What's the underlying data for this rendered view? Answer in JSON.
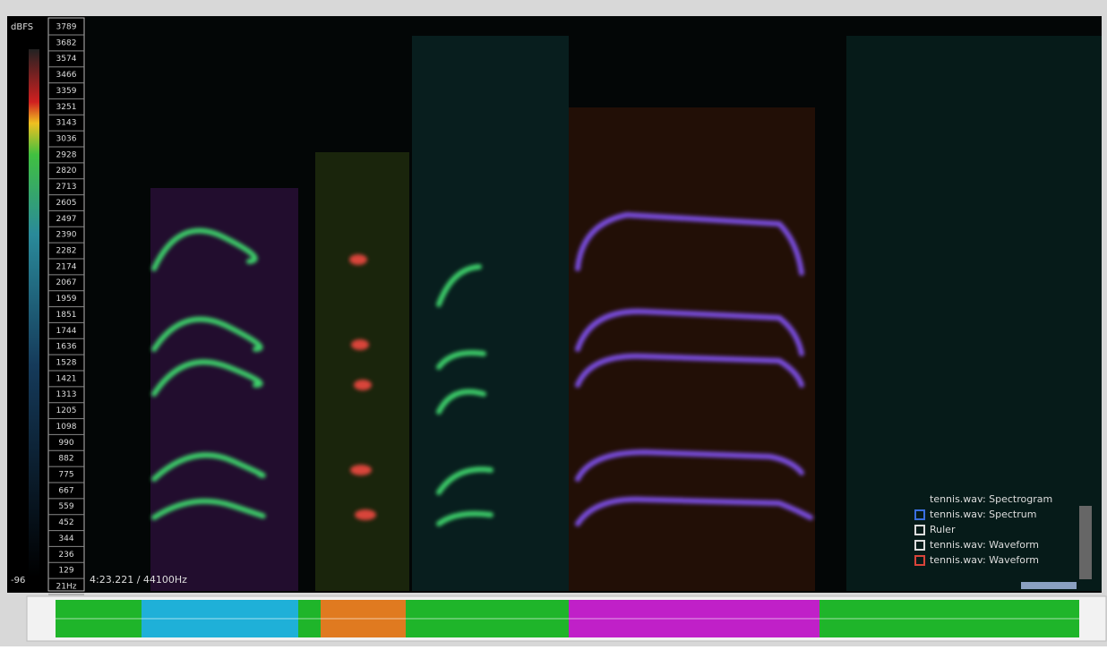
{
  "scale": {
    "unit": "dBFS",
    "min_label": "-96"
  },
  "frequency_labels": [
    "3789",
    "3682",
    "3574",
    "3466",
    "3359",
    "3251",
    "3143",
    "3036",
    "2928",
    "2820",
    "2713",
    "2605",
    "2497",
    "2390",
    "2282",
    "2174",
    "2067",
    "1959",
    "1851",
    "1744",
    "1636",
    "1528",
    "1421",
    "1313",
    "1205",
    "1098",
    "990",
    "882",
    "775",
    "667",
    "559",
    "452",
    "344",
    "236",
    "129",
    "21Hz"
  ],
  "status": "4:23.221 / 44100Hz",
  "legend": [
    {
      "label": "tennis.wav: Spectrogram",
      "color": null
    },
    {
      "label": "tennis.wav: Spectrum",
      "color": "#3a6fe0"
    },
    {
      "label": "Ruler",
      "color": "#dddddd"
    },
    {
      "label": "tennis.wav: Waveform",
      "color": "#dddddd"
    },
    {
      "label": "tennis.wav: Waveform",
      "color": "#d9443a"
    }
  ]
}
